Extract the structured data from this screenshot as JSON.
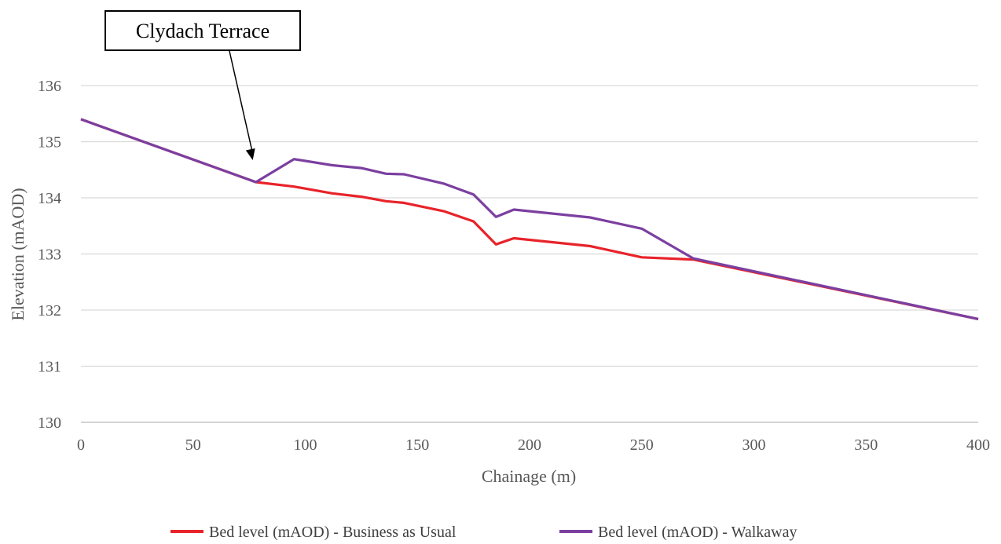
{
  "chart_data": {
    "type": "line",
    "xlabel": "Chainage (m)",
    "ylabel": "Elevation (mAOD)",
    "xlim": [
      0,
      400
    ],
    "ylim": [
      130,
      136
    ],
    "x_ticks": [
      0,
      50,
      100,
      150,
      200,
      250,
      300,
      350,
      400
    ],
    "y_ticks": [
      130,
      131,
      132,
      133,
      134,
      135,
      136
    ],
    "grid": "horizontal",
    "legend_position": "bottom",
    "annotation": {
      "text": "Clydach Terrace",
      "points_to": [
        78,
        134.28
      ]
    },
    "series": [
      {
        "name": "Bed level (mAOD) - Business as Usual",
        "color": "#e8232a",
        "points": [
          [
            0,
            135.4
          ],
          [
            78,
            134.28
          ],
          [
            95,
            134.2
          ],
          [
            112,
            134.08
          ],
          [
            125,
            134.02
          ],
          [
            136,
            133.94
          ],
          [
            144,
            133.91
          ],
          [
            162,
            133.76
          ],
          [
            175,
            133.58
          ],
          [
            185,
            133.17
          ],
          [
            193,
            133.28
          ],
          [
            227,
            133.14
          ],
          [
            250,
            132.94
          ],
          [
            273,
            132.9
          ],
          [
            400,
            131.84
          ]
        ]
      },
      {
        "name": "Bed level (mAOD) - Walkaway",
        "color": "#7b3fa0",
        "points": [
          [
            0,
            135.4
          ],
          [
            78,
            134.28
          ],
          [
            95,
            134.69
          ],
          [
            112,
            134.58
          ],
          [
            125,
            134.53
          ],
          [
            136,
            134.43
          ],
          [
            144,
            134.42
          ],
          [
            162,
            134.25
          ],
          [
            175,
            134.06
          ],
          [
            185,
            133.66
          ],
          [
            193,
            133.79
          ],
          [
            227,
            133.65
          ],
          [
            250,
            133.45
          ],
          [
            273,
            132.92
          ],
          [
            400,
            131.84
          ]
        ]
      }
    ]
  }
}
